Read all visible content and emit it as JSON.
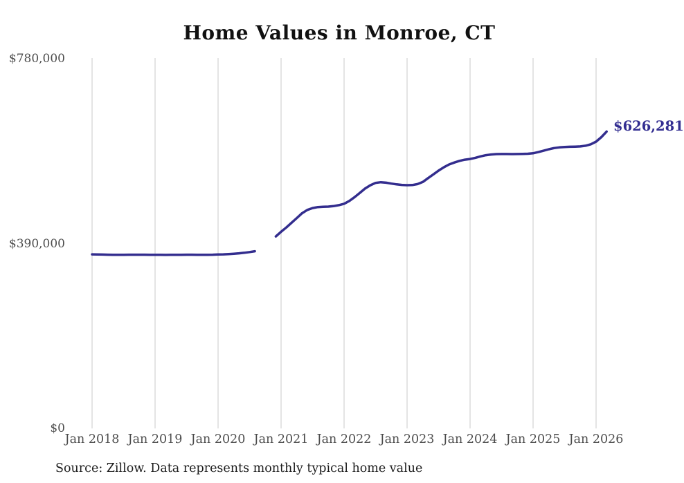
{
  "title": "Home Values in Monroe, CT",
  "end_label": "$626,281",
  "source_note": "Source: Zillow. Data represents monthly typical home value",
  "colors": {
    "line": "#332d8e",
    "grid": "#c9c9c9",
    "axis_text": "#4d4d4d",
    "title_text": "#111111",
    "end_label_text": "#332e91"
  },
  "chart_data": {
    "type": "line",
    "title": "Home Values in Monroe, CT",
    "xlabel": "",
    "ylabel": "",
    "ylim": [
      0,
      780000
    ],
    "grid": "vertical-only",
    "legend": "none",
    "y_ticks": [
      {
        "label": "$780,000",
        "value": 780000
      },
      {
        "label": "$390,000",
        "value": 390000
      },
      {
        "label": "$0",
        "value": 0
      }
    ],
    "x_tick_labels": [
      "Jan 2018",
      "Jan 2019",
      "Jan 2020",
      "Jan 2021",
      "Jan 2022",
      "Jan 2023",
      "Jan 2024",
      "Jan 2025",
      "Jan 2026"
    ],
    "start_month": "Jan 2018",
    "months_per_point": 1,
    "end_annotation": "$626,281",
    "series": [
      {
        "name": "Typical home value",
        "note_gap": "null values = missing data (Sep-Nov 2020)",
        "values": [
          367200,
          367000,
          366800,
          366600,
          366400,
          366300,
          366400,
          366500,
          366600,
          366600,
          366500,
          366400,
          366300,
          366200,
          366100,
          366200,
          366300,
          366400,
          366500,
          366500,
          366400,
          366300,
          366400,
          366600,
          366900,
          367300,
          367900,
          368600,
          369500,
          370600,
          372000,
          373800,
          null,
          null,
          null,
          405000,
          415000,
          424000,
          434000,
          444000,
          454000,
          461000,
          465000,
          467000,
          467500,
          468000,
          469000,
          471000,
          474000,
          480000,
          488000,
          497000,
          506000,
          513000,
          518000,
          519500,
          518500,
          516500,
          515000,
          513800,
          513200,
          513500,
          515500,
          520000,
          528000,
          536000,
          544000,
          551000,
          557000,
          561000,
          564500,
          567000,
          568500,
          571000,
          574000,
          576500,
          578000,
          578800,
          579000,
          579000,
          578800,
          579000,
          579300,
          579600,
          580500,
          583000,
          586000,
          589000,
          591500,
          593000,
          593800,
          594200,
          594500,
          595000,
          596500,
          599500,
          605000,
          614500,
          626281
        ]
      }
    ]
  }
}
